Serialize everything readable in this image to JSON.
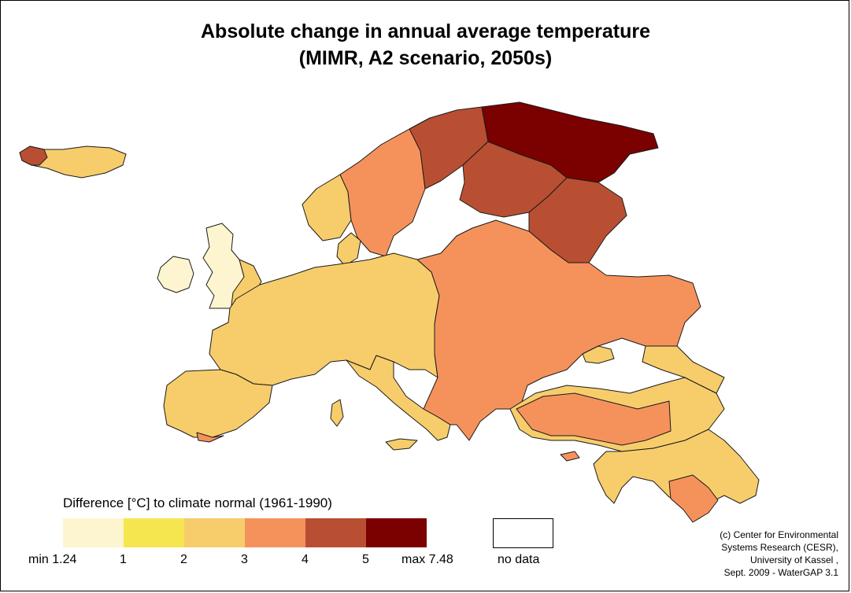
{
  "title": {
    "line1": "Absolute change in annual average temperature",
    "line2": "(MIMR, A2 scenario, 2050s)"
  },
  "colors": {
    "outline": "#1a1a1a",
    "sea": "#ffffff",
    "c_1_24_to_1": "#fdf5cf",
    "c_1_to_2": "#f5e650",
    "c_2_to_3": "#f7cd6c",
    "c_3_to_4": "#f5925c",
    "c_4_to_5": "#b94f32",
    "c_5_to_7_48": "#7b0000",
    "no_data": "#ffffff"
  },
  "legend": {
    "title": "Difference [°C] to climate normal (1961-1990)",
    "classes": [
      {
        "color": "#fdf5cf"
      },
      {
        "color": "#f5e650"
      },
      {
        "color": "#f7cd6c"
      },
      {
        "color": "#f5925c"
      },
      {
        "color": "#b94f32"
      },
      {
        "color": "#7b0000"
      }
    ],
    "labels": [
      "min 1.24",
      "1",
      "2",
      "3",
      "4",
      "5",
      "max 7.48"
    ],
    "no_data": "no data"
  },
  "credit": {
    "line1": "(c) Center for Environmental",
    "line2": "Systems Research (CESR),",
    "line3": "University of Kassel ,",
    "line4": "Sept. 2009 - WaterGAP 3.1"
  }
}
